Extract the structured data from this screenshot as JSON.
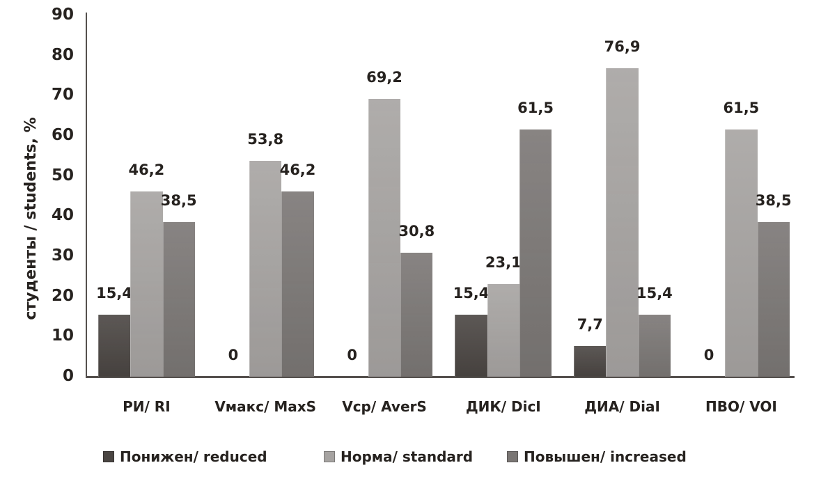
{
  "chart_data": {
    "type": "bar",
    "title": "",
    "ylabel": "студенты / students, %",
    "xlabel": "",
    "ylim": [
      0,
      90
    ],
    "yticks": [
      0,
      10,
      20,
      30,
      40,
      50,
      60,
      70,
      80,
      90
    ],
    "grid": false,
    "legend_position": "bottom",
    "categories": [
      "РИ/ RI",
      "Vмакс/ MaxS",
      "Vср/ AverS",
      "ДИК/ DicI",
      "ДИА/ DiaI",
      "ПВО/ VOI"
    ],
    "series": [
      {
        "name": "Понижен/ reduced",
        "color": "#4a4542",
        "values": [
          15.4,
          0,
          0,
          15.4,
          7.7,
          0
        ]
      },
      {
        "name": "Норма/ standard",
        "color": "#a6a3a1",
        "values": [
          46.2,
          53.8,
          69.2,
          23.1,
          76.9,
          61.5
        ]
      },
      {
        "name": "Повышен/ increased",
        "color": "#7a7674",
        "values": [
          38.5,
          46.2,
          30.8,
          61.5,
          15.4,
          38.5
        ]
      }
    ],
    "value_labels": [
      [
        "15,4",
        "46,2",
        "38,5"
      ],
      [
        "0",
        "53,8",
        "46,2"
      ],
      [
        "0",
        "69,2",
        "30,8"
      ],
      [
        "15,4",
        "23,1",
        "61,5"
      ],
      [
        "7,7",
        "76,9",
        "15,4"
      ],
      [
        "0",
        "61,5",
        "38,5"
      ]
    ]
  }
}
